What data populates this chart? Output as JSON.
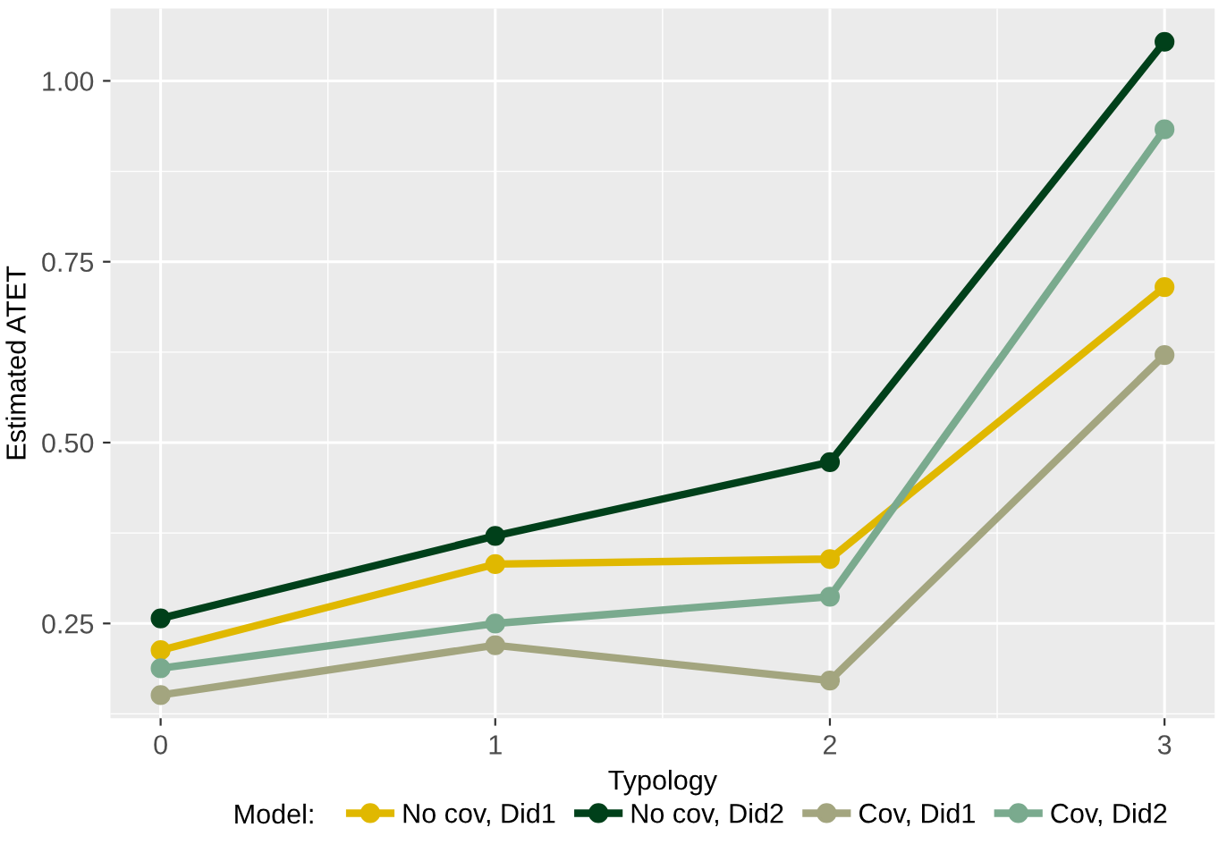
{
  "chart_data": {
    "type": "line",
    "xlabel": "Typology",
    "ylabel": "Estimated ATET",
    "legend_title": "Model:",
    "x": [
      0,
      1,
      2,
      3
    ],
    "xlim": [
      -0.15,
      3.15
    ],
    "xticks": [
      0,
      1,
      2,
      3
    ],
    "ylim": [
      0.119,
      1.1
    ],
    "yticks": [
      {
        "value": 0.25,
        "label": "0.25"
      },
      {
        "value": 0.5,
        "label": "0.50"
      },
      {
        "value": 0.75,
        "label": "0.75"
      },
      {
        "value": 1.0,
        "label": "1.00"
      }
    ],
    "grid": true,
    "legend": "bottom",
    "marker": "circle",
    "line_style": "solid",
    "series": [
      {
        "name": "No cov, Did1",
        "color": "#e0b800",
        "values": [
          0.213,
          0.332,
          0.339,
          0.715
        ]
      },
      {
        "name": "No cov, Did2",
        "color": "#00401a",
        "values": [
          0.257,
          0.371,
          0.473,
          1.054
        ]
      },
      {
        "name": "Cov, Did1",
        "color": "#a3a57f",
        "values": [
          0.151,
          0.22,
          0.171,
          0.621
        ]
      },
      {
        "name": "Cov, Did2",
        "color": "#7aaa8e",
        "values": [
          0.188,
          0.25,
          0.287,
          0.933
        ]
      }
    ]
  }
}
